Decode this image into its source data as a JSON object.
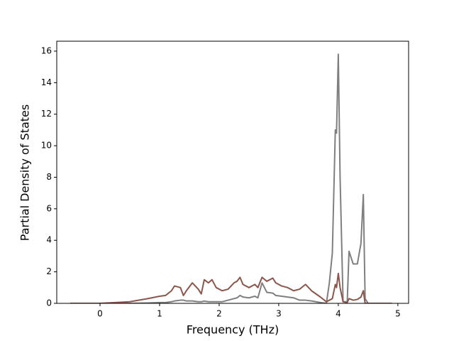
{
  "chart_data": {
    "type": "line",
    "xlabel": "Frequency (THz)",
    "ylabel": "Partial Density of States",
    "x": [
      -0.5,
      0,
      0.5,
      0.8,
      1.0,
      1.1,
      1.2,
      1.25,
      1.35,
      1.4,
      1.45,
      1.55,
      1.65,
      1.7,
      1.75,
      1.82,
      1.88,
      1.95,
      2.05,
      2.15,
      2.25,
      2.3,
      2.35,
      2.4,
      2.5,
      2.6,
      2.65,
      2.72,
      2.8,
      2.9,
      2.95,
      3.05,
      3.15,
      3.25,
      3.35,
      3.45,
      3.55,
      3.7,
      3.8,
      3.85,
      3.9,
      3.95,
      3.97,
      4.0,
      4.03,
      4.08,
      4.15,
      4.18,
      4.25,
      4.32,
      4.38,
      4.42,
      4.45,
      4.5,
      4.9
    ],
    "series": [
      {
        "color": "#7f7f7f",
        "values": [
          0,
          0,
          0,
          0.02,
          0.05,
          0.05,
          0.1,
          0.15,
          0.2,
          0.2,
          0.15,
          0.15,
          0.1,
          0.1,
          0.15,
          0.1,
          0.1,
          0.1,
          0.1,
          0.2,
          0.3,
          0.35,
          0.5,
          0.4,
          0.35,
          0.45,
          0.35,
          1.3,
          0.7,
          0.65,
          0.5,
          0.45,
          0.4,
          0.35,
          0.2,
          0.2,
          0.15,
          0.05,
          0,
          1.3,
          3.2,
          11,
          10.8,
          15.8,
          8,
          0.1,
          0.1,
          3.3,
          2.5,
          2.5,
          3.8,
          6.9,
          0.3,
          0,
          0
        ]
      },
      {
        "color": "#8c564b",
        "values": [
          0,
          0,
          0.1,
          0.3,
          0.45,
          0.5,
          0.8,
          1.1,
          1.0,
          0.5,
          0.8,
          1.3,
          0.9,
          0.6,
          1.5,
          1.3,
          1.5,
          1.0,
          0.8,
          0.9,
          1.3,
          1.4,
          1.65,
          1.2,
          1.0,
          1.2,
          1.0,
          1.65,
          1.4,
          1.6,
          1.3,
          1.1,
          1.0,
          0.8,
          0.9,
          1.2,
          0.8,
          0.4,
          0.1,
          0.2,
          0.3,
          1.2,
          1.0,
          1.9,
          1.0,
          0.1,
          0.05,
          0.3,
          0.2,
          0.25,
          0.4,
          0.8,
          0,
          0,
          0
        ]
      }
    ],
    "xlim": [
      -0.726,
      5.18
    ],
    "ylim": [
      0,
      16.63
    ],
    "xticks": [
      0,
      1,
      2,
      3,
      4,
      5
    ],
    "yticks": [
      0,
      2,
      4,
      6,
      8,
      10,
      12,
      14,
      16
    ]
  }
}
